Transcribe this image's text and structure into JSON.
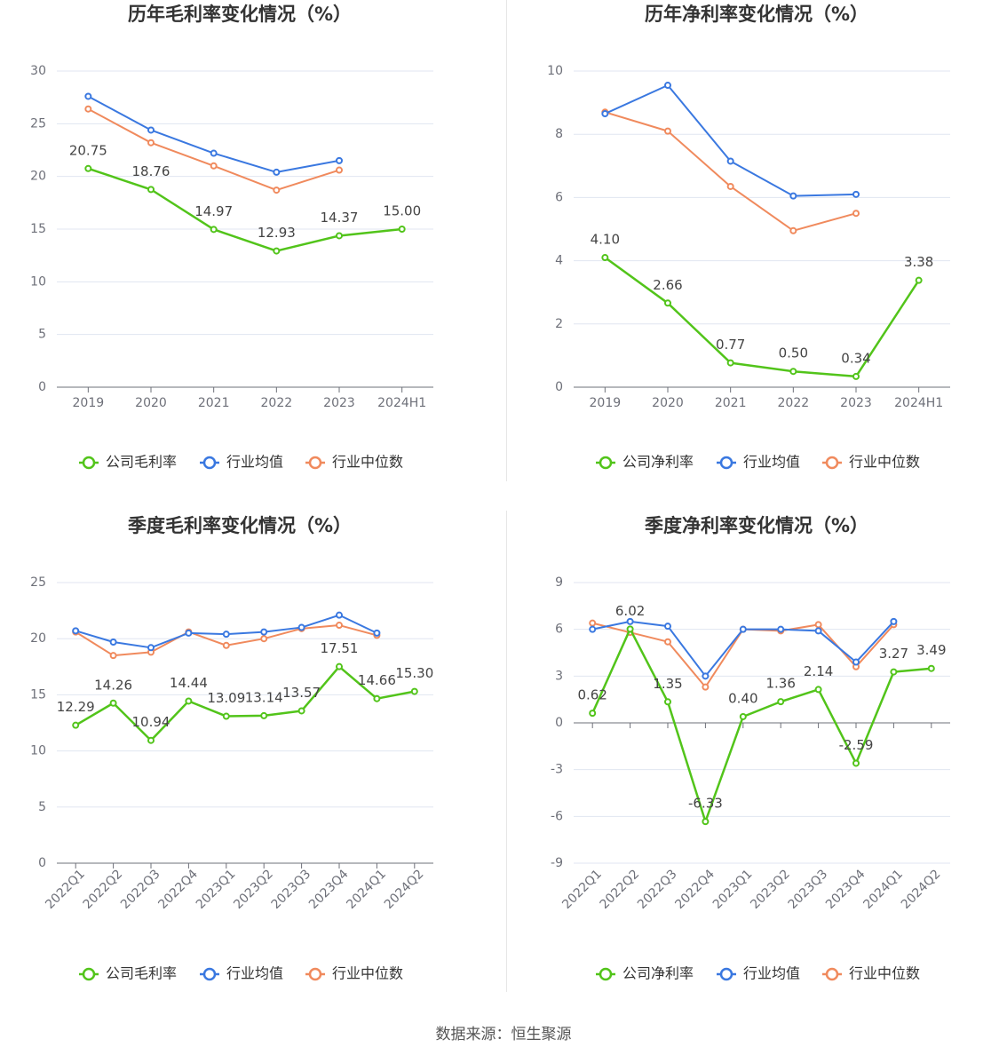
{
  "colors": {
    "company": "#52c41a",
    "industry_avg": "#3a78e0",
    "industry_median": "#f08a5d"
  },
  "legend": {
    "company_gross": "公司毛利率",
    "company_net": "公司净利率",
    "avg": "行业均值",
    "median": "行业中位数"
  },
  "footer": "数据来源：恒生聚源",
  "chart_data": [
    {
      "type": "line",
      "title": "历年毛利率变化情况（%）",
      "categories": [
        "2019",
        "2020",
        "2021",
        "2022",
        "2023",
        "2024H1"
      ],
      "ylim": [
        0,
        30
      ],
      "yticks": [
        0,
        5,
        10,
        15,
        20,
        25,
        30
      ],
      "legend_position": "bottom",
      "series": [
        {
          "name": "公司毛利率",
          "role": "company",
          "values": [
            20.75,
            18.76,
            14.97,
            12.93,
            14.37,
            15.0
          ],
          "labels": [
            "20.75",
            "18.76",
            "14.97",
            "12.93",
            "14.37",
            "15.00"
          ]
        },
        {
          "name": "行业均值",
          "role": "avg",
          "values": [
            27.6,
            24.4,
            22.2,
            20.4,
            21.5,
            null
          ]
        },
        {
          "name": "行业中位数",
          "role": "median",
          "values": [
            26.4,
            23.2,
            21.0,
            18.7,
            20.6,
            null
          ]
        }
      ]
    },
    {
      "type": "line",
      "title": "历年净利率变化情况（%）",
      "categories": [
        "2019",
        "2020",
        "2021",
        "2022",
        "2023",
        "2024H1"
      ],
      "ylim": [
        0,
        10
      ],
      "yticks": [
        0,
        2,
        4,
        6,
        8,
        10
      ],
      "legend_position": "bottom",
      "series": [
        {
          "name": "公司净利率",
          "role": "company",
          "values": [
            4.1,
            2.66,
            0.77,
            0.5,
            0.34,
            3.38
          ],
          "labels": [
            "4.10",
            "2.66",
            "0.77",
            "0.50",
            "0.34",
            "3.38"
          ]
        },
        {
          "name": "行业均值",
          "role": "avg",
          "values": [
            8.65,
            9.55,
            7.15,
            6.05,
            6.1,
            null
          ]
        },
        {
          "name": "行业中位数",
          "role": "median",
          "values": [
            8.7,
            8.1,
            6.35,
            4.95,
            5.5,
            null
          ]
        }
      ]
    },
    {
      "type": "line",
      "title": "季度毛利率变化情况（%）",
      "categories": [
        "2022Q1",
        "2022Q2",
        "2022Q3",
        "2022Q4",
        "2023Q1",
        "2023Q2",
        "2023Q3",
        "2023Q4",
        "2024Q1",
        "2024Q2"
      ],
      "ylim": [
        0,
        25
      ],
      "yticks": [
        0,
        5,
        10,
        15,
        20,
        25
      ],
      "legend_position": "bottom",
      "series": [
        {
          "name": "公司毛利率",
          "role": "company",
          "values": [
            12.29,
            14.26,
            10.94,
            14.44,
            13.09,
            13.14,
            13.57,
            17.51,
            14.66,
            15.3
          ],
          "labels": [
            "12.29",
            "14.26",
            "10.94",
            "14.44",
            "13.09",
            "13.14",
            "13.57",
            "17.51",
            "14.66",
            "15.30"
          ]
        },
        {
          "name": "行业均值",
          "role": "avg",
          "values": [
            20.7,
            19.7,
            19.2,
            20.5,
            20.4,
            20.6,
            21.0,
            22.1,
            20.5,
            null
          ]
        },
        {
          "name": "行业中位数",
          "role": "median",
          "values": [
            20.6,
            18.5,
            18.8,
            20.6,
            19.4,
            20.0,
            20.9,
            21.2,
            20.3,
            null
          ]
        }
      ]
    },
    {
      "type": "line",
      "title": "季度净利率变化情况（%）",
      "categories": [
        "2022Q1",
        "2022Q2",
        "2022Q3",
        "2022Q4",
        "2023Q1",
        "2023Q2",
        "2023Q3",
        "2023Q4",
        "2024Q1",
        "2024Q2"
      ],
      "ylim": [
        -9,
        9
      ],
      "yticks": [
        -9,
        -6,
        -3,
        0,
        3,
        6,
        9
      ],
      "legend_position": "bottom",
      "series": [
        {
          "name": "公司净利率",
          "role": "company",
          "values": [
            0.62,
            6.02,
            1.35,
            -6.33,
            0.4,
            1.36,
            2.14,
            -2.59,
            3.27,
            3.49
          ],
          "labels": [
            "0.62",
            "6.02",
            "1.35",
            "-6.33",
            "0.40",
            "1.36",
            "2.14",
            "-2.59",
            "3.27",
            "3.49"
          ]
        },
        {
          "name": "行业均值",
          "role": "avg",
          "values": [
            6.0,
            6.5,
            6.2,
            3.0,
            6.0,
            6.0,
            5.9,
            3.9,
            6.5,
            null
          ]
        },
        {
          "name": "行业中位数",
          "role": "median",
          "values": [
            6.4,
            5.8,
            5.2,
            2.3,
            6.0,
            5.9,
            6.3,
            3.6,
            6.3,
            null
          ]
        }
      ]
    }
  ]
}
